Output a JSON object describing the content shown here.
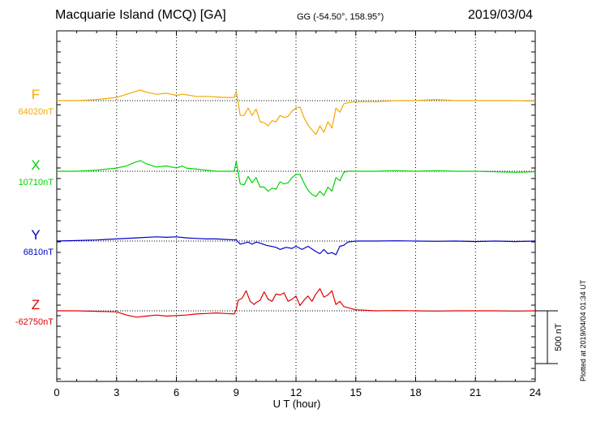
{
  "header": {
    "title": "Macquarie Island (MCQ)  [GA]",
    "coords": "GG (-54.50°, 158.95°)",
    "date": "2019/03/04",
    "plotted": "Plotted at 2019/04/04 01:34 UT"
  },
  "chart_data": {
    "type": "line",
    "xlabel": "U T (hour)",
    "xlim": [
      0,
      24
    ],
    "xticks": [
      0,
      3,
      6,
      9,
      12,
      15,
      18,
      21,
      24
    ],
    "grid": true,
    "scale_bar": {
      "label": "500 nT",
      "value": 500
    },
    "colors": {
      "F": "#f2a900",
      "X": "#00d400",
      "Y": "#0000c8",
      "Z": "#e00000"
    },
    "series": [
      {
        "name": "F",
        "baseline_label": "64020nT",
        "baseline": 64020,
        "x": [
          0,
          1,
          2,
          3,
          3.5,
          4,
          4.2,
          4.5,
          5,
          5.5,
          6,
          6.3,
          6.5,
          7,
          7.5,
          8,
          8.5,
          8.9,
          9,
          9.05,
          9.2,
          9.4,
          9.6,
          9.8,
          10,
          10.2,
          10.4,
          10.6,
          10.8,
          11,
          11.2,
          11.4,
          11.6,
          11.8,
          12,
          12.2,
          12.4,
          12.6,
          12.8,
          13,
          13.2,
          13.4,
          13.6,
          13.8,
          14,
          14.2,
          14.4,
          14.6,
          15,
          16,
          17,
          18,
          19,
          20,
          21,
          22,
          23,
          24
        ],
        "values": [
          64020,
          64020,
          64030,
          64050,
          64080,
          64110,
          64120,
          64100,
          64080,
          64090,
          64070,
          64080,
          64075,
          64060,
          64060,
          64055,
          64050,
          64050,
          64110,
          64060,
          63880,
          63880,
          63950,
          63880,
          63940,
          63820,
          63810,
          63780,
          63830,
          63820,
          63880,
          63860,
          63870,
          63920,
          63950,
          63960,
          63860,
          63790,
          63740,
          63700,
          63780,
          63720,
          63820,
          63760,
          63950,
          63910,
          63990,
          64000,
          64010,
          64010,
          64020,
          64020,
          64030,
          64020,
          64020,
          64020,
          64020,
          64015
        ]
      },
      {
        "name": "X",
        "baseline_label": "10710nT",
        "baseline": 10710,
        "x": [
          0,
          1,
          2,
          3,
          3.5,
          4,
          4.2,
          4.5,
          5,
          5.5,
          6,
          6.3,
          6.5,
          7,
          7.5,
          8,
          8.5,
          8.9,
          9,
          9.05,
          9.2,
          9.4,
          9.6,
          9.8,
          10,
          10.2,
          10.4,
          10.6,
          10.8,
          11,
          11.2,
          11.4,
          11.6,
          11.8,
          12,
          12.2,
          12.4,
          12.6,
          12.8,
          13,
          13.2,
          13.4,
          13.6,
          13.8,
          14,
          14.2,
          14.4,
          14.6,
          15,
          16,
          17,
          18,
          19,
          20,
          21,
          22,
          23,
          24
        ],
        "values": [
          10710,
          10710,
          10720,
          10740,
          10760,
          10800,
          10810,
          10780,
          10750,
          10760,
          10740,
          10760,
          10740,
          10730,
          10720,
          10710,
          10710,
          10710,
          10800,
          10750,
          10590,
          10580,
          10660,
          10600,
          10650,
          10560,
          10560,
          10520,
          10550,
          10540,
          10610,
          10590,
          10600,
          10650,
          10680,
          10680,
          10600,
          10530,
          10490,
          10470,
          10520,
          10480,
          10560,
          10520,
          10650,
          10620,
          10700,
          10710,
          10710,
          10710,
          10715,
          10710,
          10715,
          10710,
          10710,
          10705,
          10700,
          10705
        ]
      },
      {
        "name": "Y",
        "baseline_label": "6810nT",
        "baseline": 6810,
        "x": [
          0,
          1,
          2,
          3,
          4,
          5,
          5.5,
          6,
          6.5,
          7,
          7.5,
          8,
          8.5,
          9,
          9.2,
          9.4,
          9.6,
          9.8,
          10,
          10.2,
          10.5,
          11,
          11.2,
          11.5,
          11.8,
          12,
          12.3,
          12.6,
          13,
          13.2,
          13.4,
          13.6,
          13.8,
          14,
          14.2,
          14.4,
          14.6,
          15,
          16,
          17,
          18,
          19,
          20,
          21,
          22,
          23,
          24
        ],
        "values": [
          6810,
          6815,
          6820,
          6830,
          6840,
          6850,
          6845,
          6850,
          6840,
          6835,
          6830,
          6830,
          6825,
          6820,
          6780,
          6790,
          6800,
          6780,
          6800,
          6790,
          6770,
          6750,
          6730,
          6750,
          6740,
          6760,
          6730,
          6760,
          6710,
          6690,
          6730,
          6690,
          6700,
          6680,
          6760,
          6770,
          6800,
          6810,
          6810,
          6812,
          6810,
          6808,
          6810,
          6805,
          6810,
          6805,
          6810
        ]
      },
      {
        "name": "Z",
        "baseline_label": "-62750nT",
        "baseline": -62750,
        "x": [
          0,
          1,
          2,
          3,
          3.5,
          4,
          4.5,
          5,
          5.5,
          6,
          6.5,
          7,
          7.5,
          8,
          8.5,
          8.9,
          9,
          9.1,
          9.3,
          9.5,
          9.7,
          9.9,
          10,
          10.2,
          10.4,
          10.6,
          10.8,
          11,
          11.2,
          11.4,
          11.6,
          11.8,
          12,
          12.2,
          12.4,
          12.6,
          12.8,
          13,
          13.2,
          13.4,
          13.6,
          13.8,
          14,
          14.2,
          14.4,
          14.6,
          15,
          16,
          17,
          18,
          19,
          20,
          21,
          22,
          23,
          24
        ],
        "values": [
          -62750,
          -62750,
          -62755,
          -62760,
          -62790,
          -62810,
          -62800,
          -62790,
          -62800,
          -62795,
          -62790,
          -62780,
          -62775,
          -62770,
          -62775,
          -62780,
          -62740,
          -62650,
          -62630,
          -62560,
          -62660,
          -62690,
          -62670,
          -62650,
          -62570,
          -62640,
          -62660,
          -62590,
          -62600,
          -62580,
          -62660,
          -62640,
          -62610,
          -62700,
          -62650,
          -62610,
          -62660,
          -62590,
          -62540,
          -62620,
          -62600,
          -62560,
          -62690,
          -62660,
          -62710,
          -62720,
          -62740,
          -62750,
          -62748,
          -62750,
          -62752,
          -62750,
          -62750,
          -62750,
          -62752,
          -62750
        ]
      }
    ]
  }
}
